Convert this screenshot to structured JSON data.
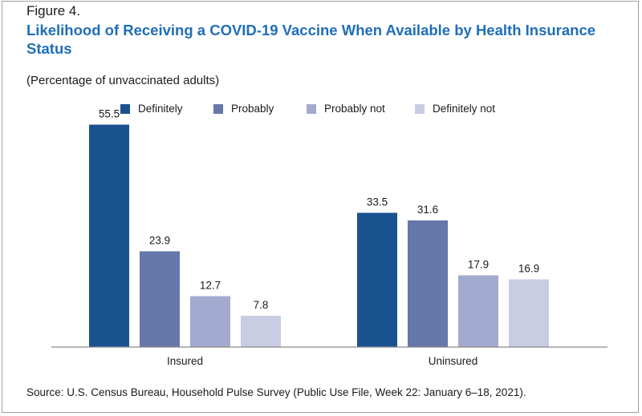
{
  "figure_label": "Figure 4.",
  "title": "Likelihood of Receiving a COVID-19 Vaccine When Available by Health Insurance Status",
  "subtitle": "(Percentage of unvaccinated adults)",
  "source": "Source: U.S. Census Bureau, Household Pulse Survey (Public Use File, Week 22: January 6–18, 2021).",
  "chart_data": {
    "type": "bar",
    "title": "Likelihood of Receiving a COVID-19 Vaccine When Available by Health Insurance Status",
    "subtitle": "(Percentage of unvaccinated adults)",
    "categories": [
      "Insured",
      "Uninsured"
    ],
    "series": [
      {
        "name": "Definitely",
        "color": "#1a5290",
        "values": [
          55.5,
          33.5
        ]
      },
      {
        "name": "Probably",
        "color": "#6677ab",
        "values": [
          23.9,
          31.6
        ]
      },
      {
        "name": "Probably not",
        "color": "#a2aacf",
        "values": [
          12.7,
          17.9
        ]
      },
      {
        "name": "Definitely not",
        "color": "#c8cde3",
        "values": [
          7.8,
          16.9
        ]
      }
    ],
    "xlabel": "",
    "ylabel": "",
    "ylim": [
      0,
      60
    ],
    "grid": false,
    "legend_position": "top",
    "data_labels": true
  }
}
